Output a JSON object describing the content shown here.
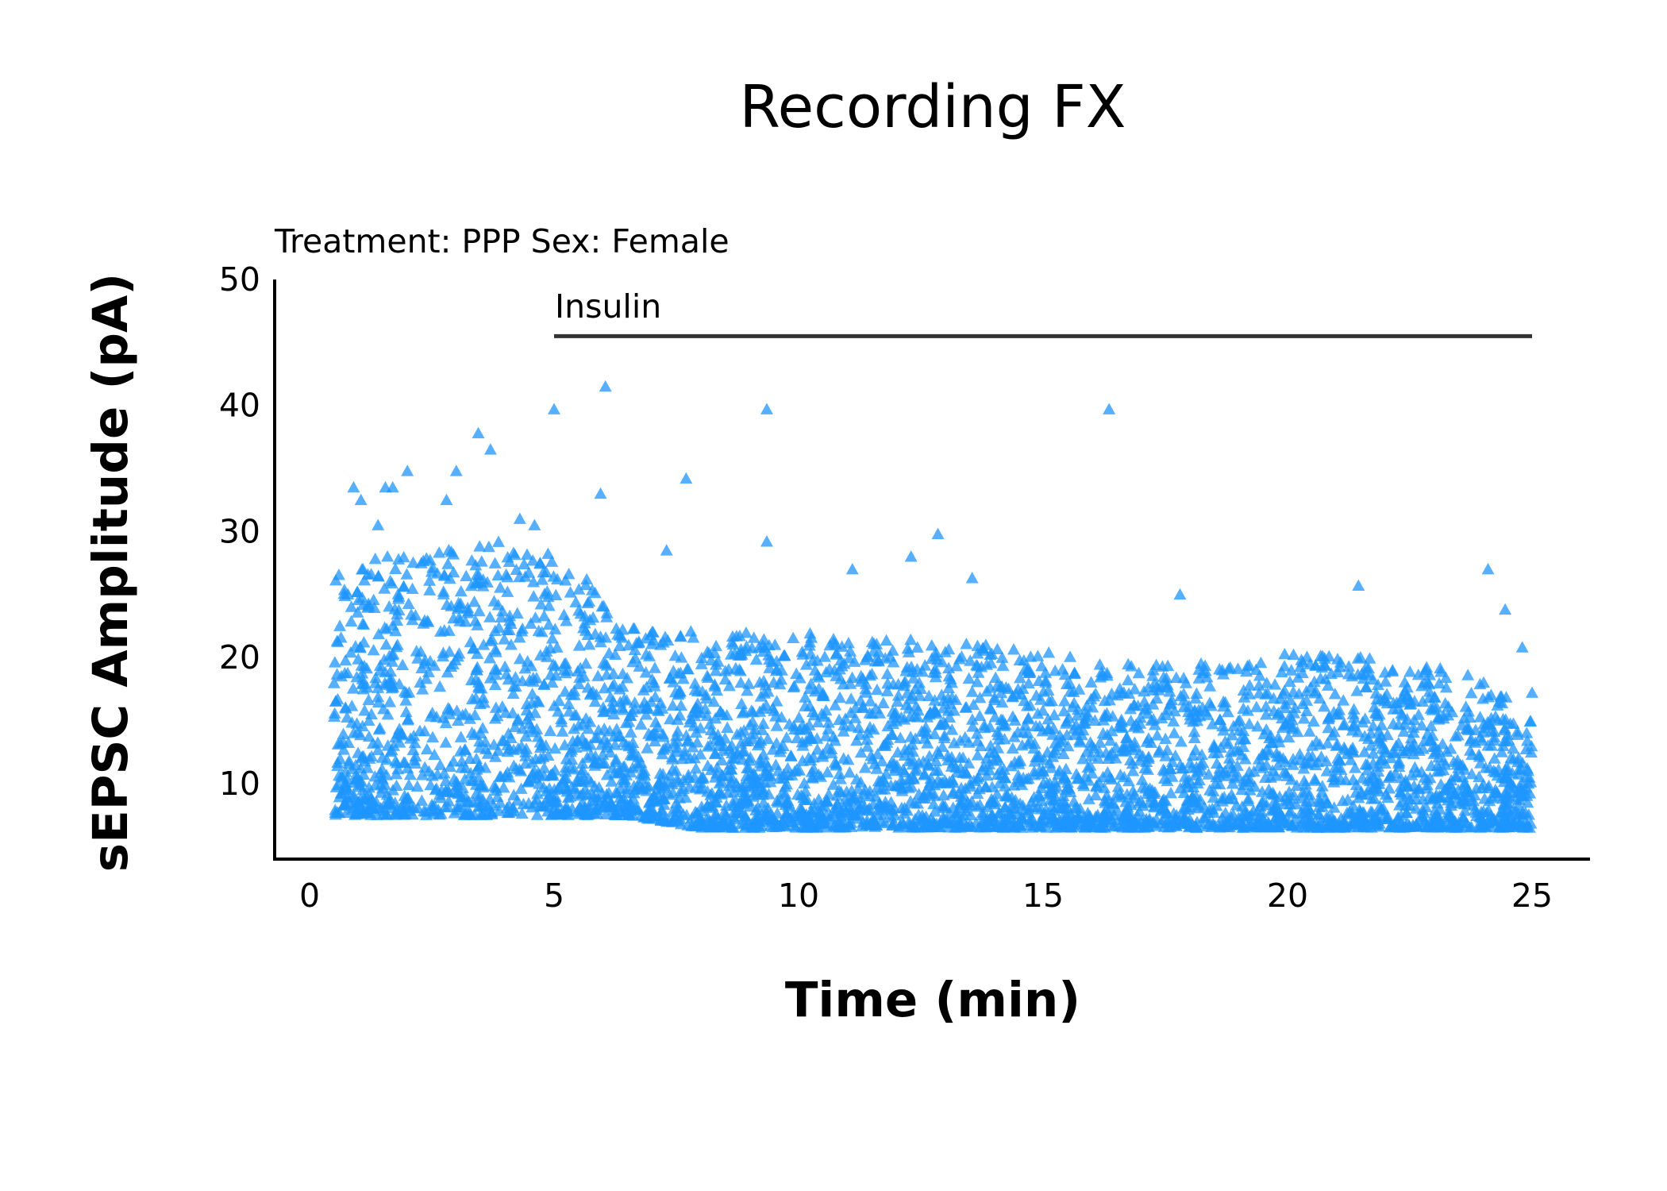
{
  "chart_data": {
    "type": "scatter",
    "title": "Recording FX",
    "subtitle": "Treatment: PPP  Sex: Female",
    "xlabel": "Time (min)",
    "ylabel": "sEPSC Amplitude (pA)",
    "xlim": [
      0,
      25
    ],
    "ylim": [
      4,
      50
    ],
    "xticks": [
      0,
      5,
      10,
      15,
      20,
      25
    ],
    "yticks": [
      10,
      20,
      30,
      40,
      50
    ],
    "grid": false,
    "marker": "triangle",
    "colors": {
      "points": "#1e96ff",
      "bar": "#333333",
      "axis": "#000000"
    },
    "annotation": {
      "label": "Insulin",
      "x_start": 5,
      "x_end": 25,
      "y": 45.5
    },
    "outliers": [
      [
        0.9,
        33.5
      ],
      [
        1.05,
        32.5
      ],
      [
        1.4,
        30.5
      ],
      [
        1.55,
        33.5
      ],
      [
        1.7,
        33.5
      ],
      [
        2.0,
        34.8
      ],
      [
        2.8,
        32.5
      ],
      [
        3.0,
        34.8
      ],
      [
        3.45,
        37.8
      ],
      [
        3.7,
        36.5
      ],
      [
        4.3,
        31.0
      ],
      [
        4.6,
        30.5
      ],
      [
        5.0,
        39.7
      ],
      [
        6.05,
        41.5
      ],
      [
        5.95,
        33.0
      ],
      [
        7.3,
        28.5
      ],
      [
        7.7,
        34.2
      ],
      [
        9.35,
        39.7
      ],
      [
        9.35,
        29.2
      ],
      [
        11.1,
        27.0
      ],
      [
        12.3,
        28.0
      ],
      [
        12.85,
        29.8
      ],
      [
        13.55,
        26.3
      ],
      [
        16.35,
        39.7
      ],
      [
        17.8,
        25.0
      ],
      [
        21.45,
        25.7
      ],
      [
        24.1,
        27.0
      ],
      [
        24.45,
        23.8
      ],
      [
        25.0,
        17.2
      ],
      [
        24.8,
        20.8
      ]
    ],
    "bulk_envelope": {
      "x": [
        0.5,
        2.0,
        3.5,
        4.5,
        5.5,
        6.5,
        8.0,
        10.0,
        12.0,
        14.0,
        16.0,
        18.0,
        20.0,
        22.0,
        24.0,
        25.0
      ],
      "y_min": [
        7.5,
        7.5,
        7.5,
        7.5,
        7.5,
        7.5,
        6.5,
        6.5,
        6.5,
        6.5,
        6.5,
        6.5,
        6.5,
        6.5,
        6.5,
        6.5
      ],
      "y_max": [
        27.0,
        28.5,
        29.5,
        29.0,
        27.0,
        22.5,
        22.0,
        22.0,
        21.5,
        21.0,
        20.0,
        19.5,
        20.5,
        20.0,
        18.5,
        15.0
      ]
    }
  }
}
